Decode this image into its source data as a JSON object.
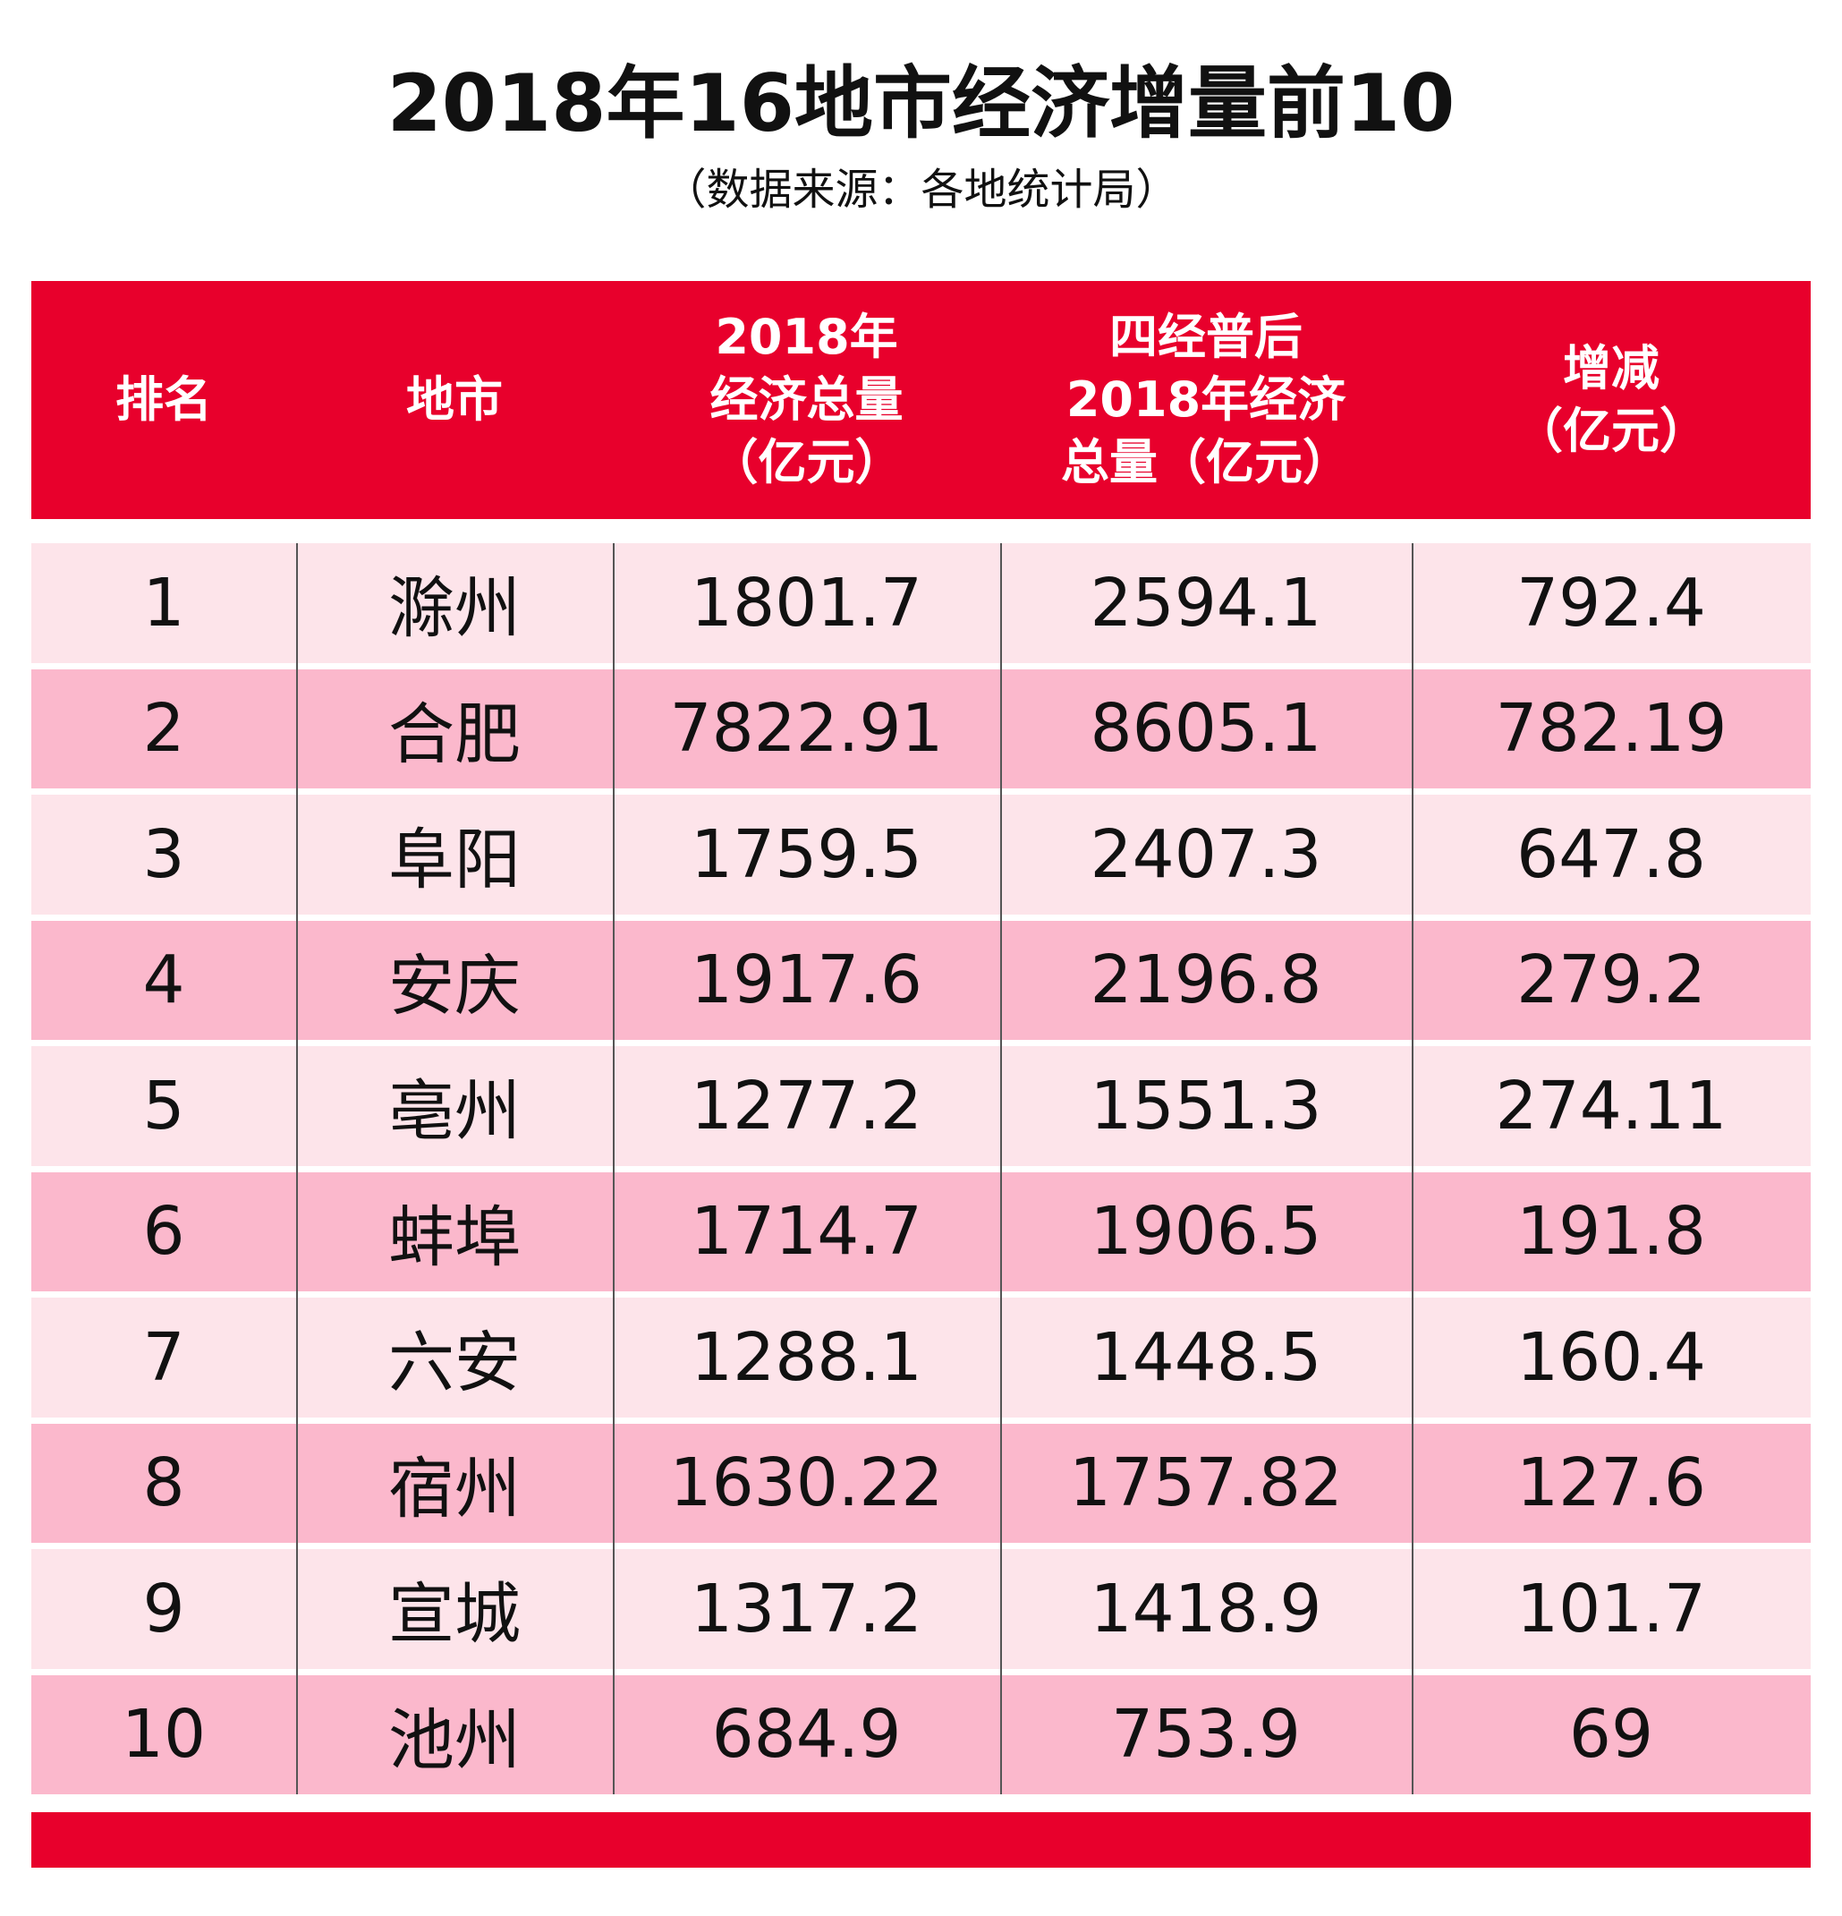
{
  "title": "2018年16地市经济增量前10",
  "subtitle": "（数据来源：各地统计局）",
  "table": {
    "headers": [
      [
        "排名"
      ],
      [
        "地市"
      ],
      [
        "2018年",
        "经济总量",
        "（亿元）"
      ],
      [
        "四经普后",
        "2018年经济",
        "总量（亿元）"
      ],
      [
        "增减",
        "（亿元）"
      ]
    ],
    "rows": [
      [
        1,
        "滁州",
        1801.7,
        2594.1,
        792.4
      ],
      [
        2,
        "合肥",
        7822.91,
        8605.1,
        782.19
      ],
      [
        3,
        "阜阳",
        1759.5,
        2407.3,
        647.8
      ],
      [
        4,
        "安庆",
        1917.6,
        2196.8,
        279.2
      ],
      [
        5,
        "亳州",
        1277.2,
        1551.3,
        274.11
      ],
      [
        6,
        "蚌埠",
        1714.7,
        1906.5,
        191.8
      ],
      [
        7,
        "六安",
        1288.1,
        1448.5,
        160.4
      ],
      [
        8,
        "宿州",
        1630.22,
        1757.82,
        127.6
      ],
      [
        9,
        "宣城",
        1317.2,
        1418.9,
        101.7
      ],
      [
        10,
        "池州",
        684.9,
        753.9,
        69
      ]
    ]
  }
}
